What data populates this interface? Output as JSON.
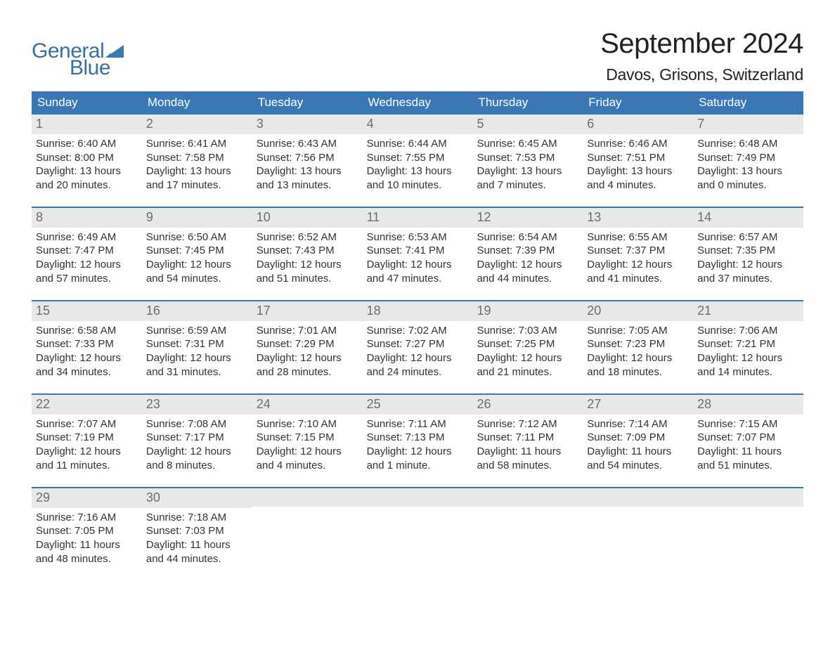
{
  "brand": {
    "line1": "General",
    "line2": "Blue",
    "flag_color": "#3a77b5"
  },
  "title": "September 2024",
  "location": "Davos, Grisons, Switzerland",
  "colors": {
    "header_bg": "#3a77b5",
    "header_text": "#ffffff",
    "daynum_bg": "#e8e8e8",
    "daynum_text": "#6d6d6d",
    "body_text": "#333333",
    "page_bg": "#ffffff",
    "brand_text": "#3a6ea5"
  },
  "typography": {
    "title_fontsize_pt": 30,
    "location_fontsize_pt": 17,
    "weekday_fontsize_pt": 13,
    "body_fontsize_pt": 11,
    "daynum_fontsize_pt": 13
  },
  "weekdays": [
    "Sunday",
    "Monday",
    "Tuesday",
    "Wednesday",
    "Thursday",
    "Friday",
    "Saturday"
  ],
  "weeks": [
    [
      {
        "n": "1",
        "sunrise": "Sunrise: 6:40 AM",
        "sunset": "Sunset: 8:00 PM",
        "d1": "Daylight: 13 hours",
        "d2": "and 20 minutes."
      },
      {
        "n": "2",
        "sunrise": "Sunrise: 6:41 AM",
        "sunset": "Sunset: 7:58 PM",
        "d1": "Daylight: 13 hours",
        "d2": "and 17 minutes."
      },
      {
        "n": "3",
        "sunrise": "Sunrise: 6:43 AM",
        "sunset": "Sunset: 7:56 PM",
        "d1": "Daylight: 13 hours",
        "d2": "and 13 minutes."
      },
      {
        "n": "4",
        "sunrise": "Sunrise: 6:44 AM",
        "sunset": "Sunset: 7:55 PM",
        "d1": "Daylight: 13 hours",
        "d2": "and 10 minutes."
      },
      {
        "n": "5",
        "sunrise": "Sunrise: 6:45 AM",
        "sunset": "Sunset: 7:53 PM",
        "d1": "Daylight: 13 hours",
        "d2": "and 7 minutes."
      },
      {
        "n": "6",
        "sunrise": "Sunrise: 6:46 AM",
        "sunset": "Sunset: 7:51 PM",
        "d1": "Daylight: 13 hours",
        "d2": "and 4 minutes."
      },
      {
        "n": "7",
        "sunrise": "Sunrise: 6:48 AM",
        "sunset": "Sunset: 7:49 PM",
        "d1": "Daylight: 13 hours",
        "d2": "and 0 minutes."
      }
    ],
    [
      {
        "n": "8",
        "sunrise": "Sunrise: 6:49 AM",
        "sunset": "Sunset: 7:47 PM",
        "d1": "Daylight: 12 hours",
        "d2": "and 57 minutes."
      },
      {
        "n": "9",
        "sunrise": "Sunrise: 6:50 AM",
        "sunset": "Sunset: 7:45 PM",
        "d1": "Daylight: 12 hours",
        "d2": "and 54 minutes."
      },
      {
        "n": "10",
        "sunrise": "Sunrise: 6:52 AM",
        "sunset": "Sunset: 7:43 PM",
        "d1": "Daylight: 12 hours",
        "d2": "and 51 minutes."
      },
      {
        "n": "11",
        "sunrise": "Sunrise: 6:53 AM",
        "sunset": "Sunset: 7:41 PM",
        "d1": "Daylight: 12 hours",
        "d2": "and 47 minutes."
      },
      {
        "n": "12",
        "sunrise": "Sunrise: 6:54 AM",
        "sunset": "Sunset: 7:39 PM",
        "d1": "Daylight: 12 hours",
        "d2": "and 44 minutes."
      },
      {
        "n": "13",
        "sunrise": "Sunrise: 6:55 AM",
        "sunset": "Sunset: 7:37 PM",
        "d1": "Daylight: 12 hours",
        "d2": "and 41 minutes."
      },
      {
        "n": "14",
        "sunrise": "Sunrise: 6:57 AM",
        "sunset": "Sunset: 7:35 PM",
        "d1": "Daylight: 12 hours",
        "d2": "and 37 minutes."
      }
    ],
    [
      {
        "n": "15",
        "sunrise": "Sunrise: 6:58 AM",
        "sunset": "Sunset: 7:33 PM",
        "d1": "Daylight: 12 hours",
        "d2": "and 34 minutes."
      },
      {
        "n": "16",
        "sunrise": "Sunrise: 6:59 AM",
        "sunset": "Sunset: 7:31 PM",
        "d1": "Daylight: 12 hours",
        "d2": "and 31 minutes."
      },
      {
        "n": "17",
        "sunrise": "Sunrise: 7:01 AM",
        "sunset": "Sunset: 7:29 PM",
        "d1": "Daylight: 12 hours",
        "d2": "and 28 minutes."
      },
      {
        "n": "18",
        "sunrise": "Sunrise: 7:02 AM",
        "sunset": "Sunset: 7:27 PM",
        "d1": "Daylight: 12 hours",
        "d2": "and 24 minutes."
      },
      {
        "n": "19",
        "sunrise": "Sunrise: 7:03 AM",
        "sunset": "Sunset: 7:25 PM",
        "d1": "Daylight: 12 hours",
        "d2": "and 21 minutes."
      },
      {
        "n": "20",
        "sunrise": "Sunrise: 7:05 AM",
        "sunset": "Sunset: 7:23 PM",
        "d1": "Daylight: 12 hours",
        "d2": "and 18 minutes."
      },
      {
        "n": "21",
        "sunrise": "Sunrise: 7:06 AM",
        "sunset": "Sunset: 7:21 PM",
        "d1": "Daylight: 12 hours",
        "d2": "and 14 minutes."
      }
    ],
    [
      {
        "n": "22",
        "sunrise": "Sunrise: 7:07 AM",
        "sunset": "Sunset: 7:19 PM",
        "d1": "Daylight: 12 hours",
        "d2": "and 11 minutes."
      },
      {
        "n": "23",
        "sunrise": "Sunrise: 7:08 AM",
        "sunset": "Sunset: 7:17 PM",
        "d1": "Daylight: 12 hours",
        "d2": "and 8 minutes."
      },
      {
        "n": "24",
        "sunrise": "Sunrise: 7:10 AM",
        "sunset": "Sunset: 7:15 PM",
        "d1": "Daylight: 12 hours",
        "d2": "and 4 minutes."
      },
      {
        "n": "25",
        "sunrise": "Sunrise: 7:11 AM",
        "sunset": "Sunset: 7:13 PM",
        "d1": "Daylight: 12 hours",
        "d2": "and 1 minute."
      },
      {
        "n": "26",
        "sunrise": "Sunrise: 7:12 AM",
        "sunset": "Sunset: 7:11 PM",
        "d1": "Daylight: 11 hours",
        "d2": "and 58 minutes."
      },
      {
        "n": "27",
        "sunrise": "Sunrise: 7:14 AM",
        "sunset": "Sunset: 7:09 PM",
        "d1": "Daylight: 11 hours",
        "d2": "and 54 minutes."
      },
      {
        "n": "28",
        "sunrise": "Sunrise: 7:15 AM",
        "sunset": "Sunset: 7:07 PM",
        "d1": "Daylight: 11 hours",
        "d2": "and 51 minutes."
      }
    ],
    [
      {
        "n": "29",
        "sunrise": "Sunrise: 7:16 AM",
        "sunset": "Sunset: 7:05 PM",
        "d1": "Daylight: 11 hours",
        "d2": "and 48 minutes."
      },
      {
        "n": "30",
        "sunrise": "Sunrise: 7:18 AM",
        "sunset": "Sunset: 7:03 PM",
        "d1": "Daylight: 11 hours",
        "d2": "and 44 minutes."
      },
      null,
      null,
      null,
      null,
      null
    ]
  ]
}
